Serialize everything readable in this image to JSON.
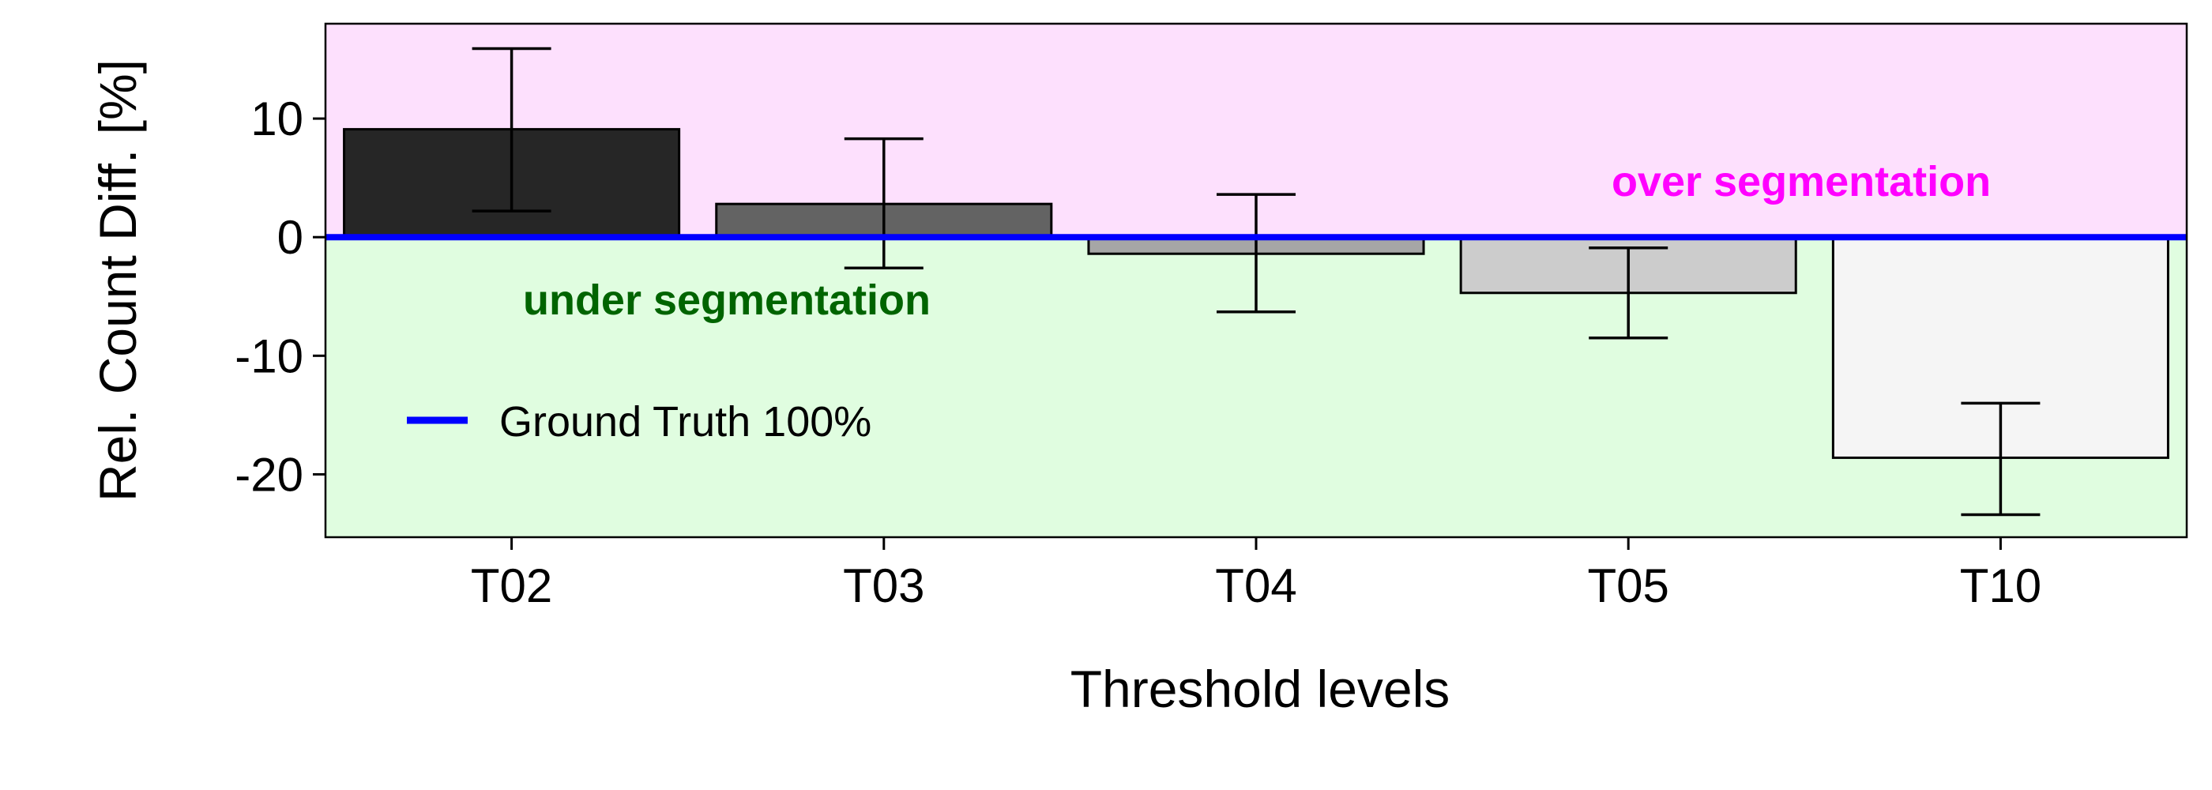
{
  "chart_data": {
    "type": "bar",
    "title": "",
    "xlabel": "Threshold levels",
    "ylabel": "Rel. Count Diff. [%]",
    "categories": [
      "T02",
      "T03",
      "T04",
      "T05",
      "T10"
    ],
    "values": [
      9.1,
      2.8,
      -1.4,
      -4.7,
      -18.6
    ],
    "error_low": [
      2.2,
      -2.6,
      -6.3,
      -8.5,
      -23.4
    ],
    "error_high": [
      15.9,
      8.3,
      3.6,
      -0.9,
      -14.0
    ],
    "bar_colors": [
      "#262626",
      "#636363",
      "#a6a6a6",
      "#cccccc",
      "#f5f5f5"
    ],
    "ylim": [
      -25.3,
      18
    ],
    "yticks": [
      10,
      0,
      -10,
      -20
    ],
    "ytick_labels": [
      "10",
      "0",
      "-10",
      "-20"
    ],
    "reference_line": {
      "value": 0,
      "color": "#0000ff",
      "label": "Ground Truth 100%"
    },
    "regions": {
      "over": {
        "label": "over segmentation",
        "color": "#ff00ff",
        "fill": "#fde0fd"
      },
      "under": {
        "label": "under segmentation",
        "color": "#006400",
        "fill": "#e0fde0"
      }
    },
    "legend_position": "bottom-left",
    "grid": false
  }
}
